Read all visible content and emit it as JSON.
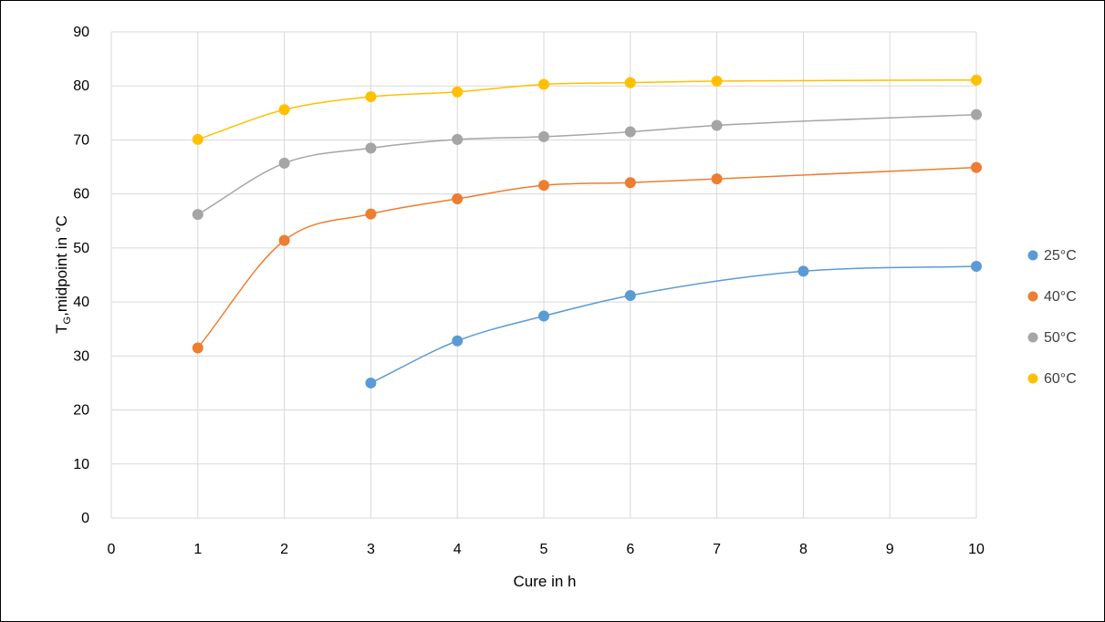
{
  "chart_data": {
    "type": "scatter",
    "xlabel": "Cure in h",
    "ylabel": {
      "main": "T",
      "subscript": "G",
      "rest": ",midpoint in °C"
    },
    "xlim": [
      0,
      10
    ],
    "ylim": [
      0,
      90
    ],
    "x_ticks": [
      "0",
      "1",
      "2",
      "3",
      "4",
      "5",
      "6",
      "7",
      "8",
      "9",
      "10"
    ],
    "y_ticks": [
      "0",
      "10",
      "20",
      "30",
      "40",
      "50",
      "60",
      "70",
      "80",
      "90"
    ],
    "grid": true,
    "legend_position": "right",
    "trendlines": "smooth",
    "series": [
      {
        "name": "25°C",
        "color": "#5B9BD5",
        "x": [
          3,
          4,
          5,
          6,
          8,
          10
        ],
        "y": [
          25,
          32.8,
          37.4,
          41.2,
          45.7,
          46.6
        ]
      },
      {
        "name": "40°C",
        "color": "#ED7D31",
        "x": [
          1,
          2,
          3,
          4,
          5,
          6,
          7,
          10
        ],
        "y": [
          31.5,
          51.4,
          56.3,
          59.1,
          61.6,
          62.1,
          62.8,
          64.9
        ]
      },
      {
        "name": "50°C",
        "color": "#A5A5A5",
        "x": [
          1,
          2,
          3,
          4,
          5,
          6,
          7,
          10
        ],
        "y": [
          56.2,
          65.7,
          68.5,
          70.1,
          70.6,
          71.5,
          72.7,
          74.7
        ]
      },
      {
        "name": "60°C",
        "color": "#FFC000",
        "x": [
          1,
          2,
          3,
          4,
          5,
          6,
          7,
          10
        ],
        "y": [
          70.1,
          75.6,
          78.0,
          78.9,
          80.3,
          80.6,
          80.9,
          81.1
        ]
      }
    ]
  }
}
